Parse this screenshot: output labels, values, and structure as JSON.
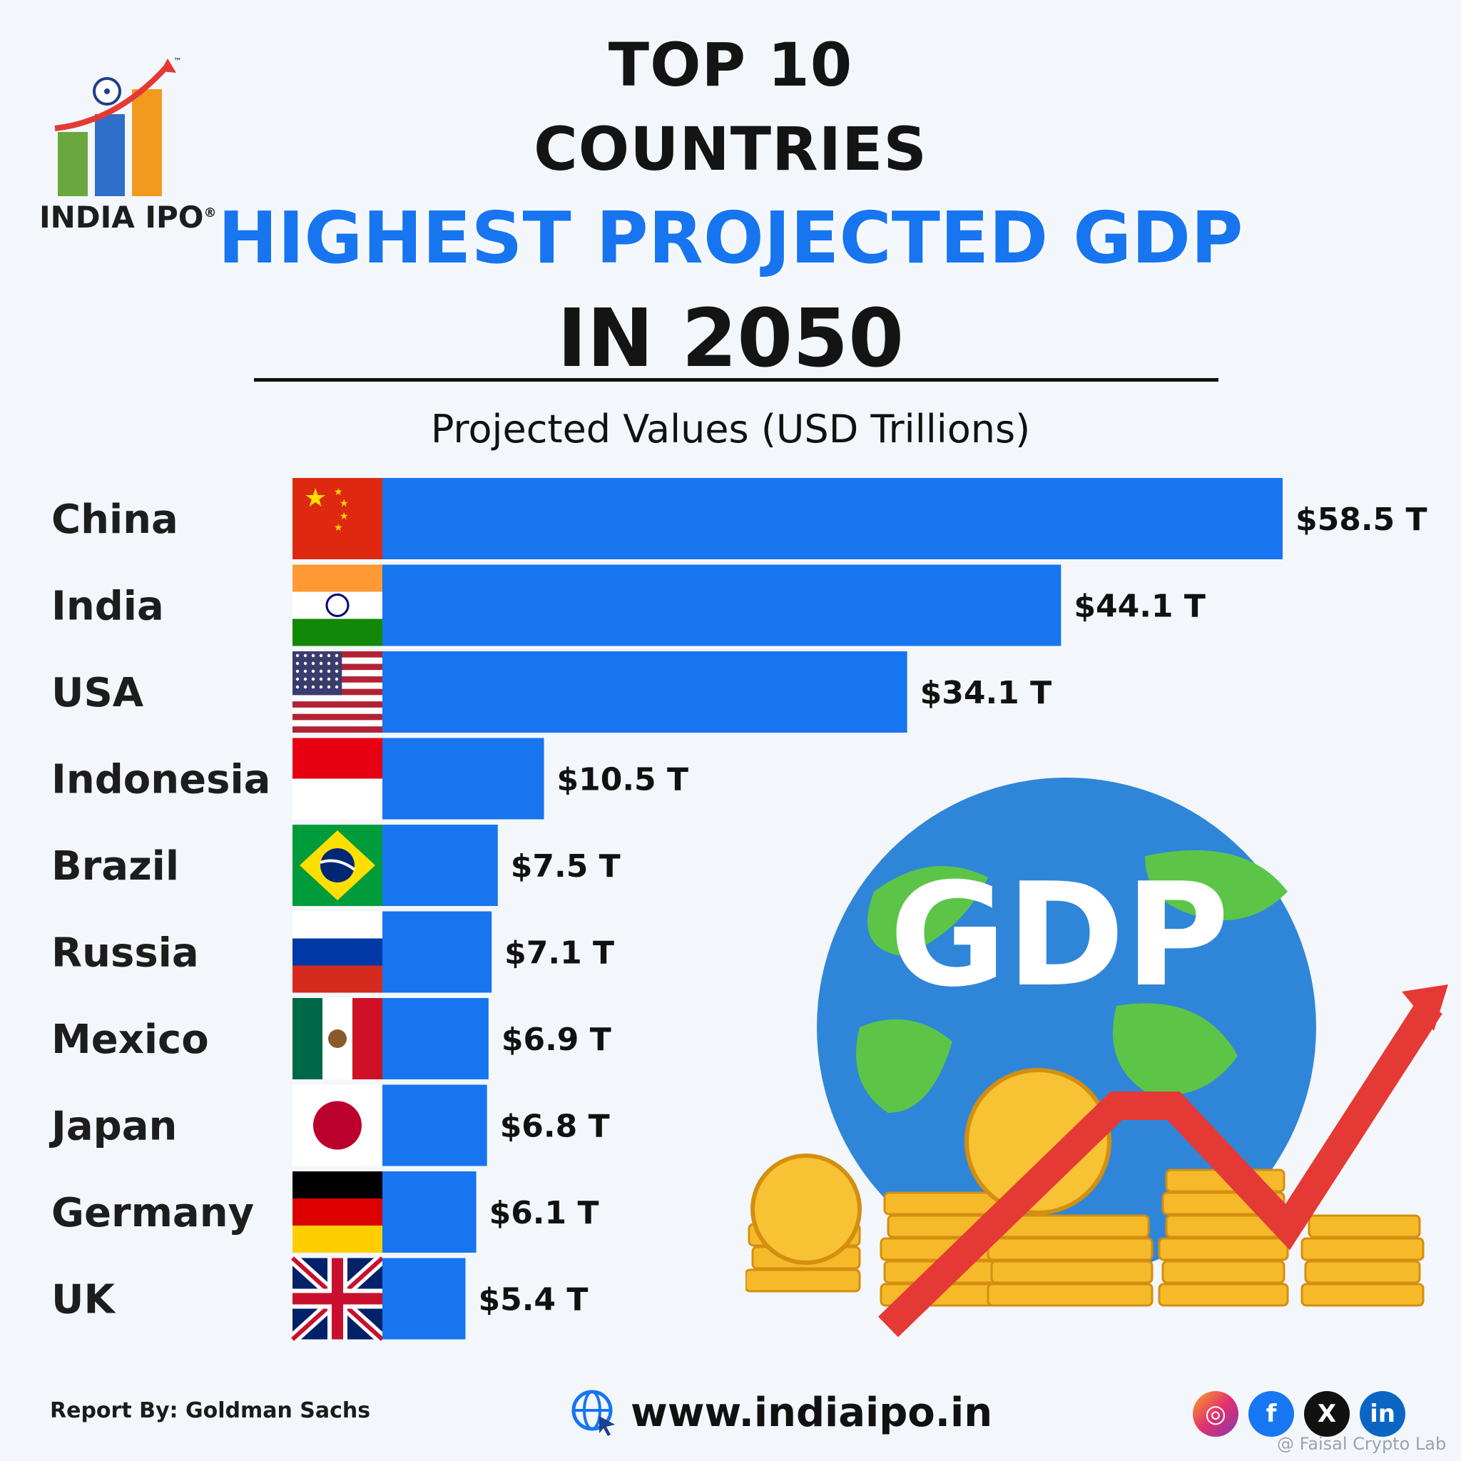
{
  "header": {
    "line1": "TOP 10",
    "line2": "COUNTRIES",
    "line3": "HIGHEST PROJECTED GDP",
    "line4": "IN 2050",
    "subtitle": "Projected Values (USD Trillions)"
  },
  "logo": {
    "text": "INDIA IPO",
    "registered": "®",
    "tm": "™"
  },
  "chart_data": {
    "type": "bar",
    "orientation": "horizontal",
    "title": "Projected Values (USD Trillions)",
    "categories": [
      "China",
      "India",
      "USA",
      "Indonesia",
      "Brazil",
      "Russia",
      "Mexico",
      "Japan",
      "Germany",
      "UK"
    ],
    "values": [
      58.5,
      44.1,
      34.1,
      10.5,
      7.5,
      7.1,
      6.9,
      6.8,
      6.1,
      5.4
    ],
    "value_labels": [
      "$58.5 T",
      "$44.1 T",
      "$34.1 T",
      "$10.5 T",
      "$7.5 T",
      "$7.1 T",
      "$6.9 T",
      "$6.8 T",
      "$6.1 T",
      "$5.4 T"
    ],
    "bar_color": "#1775f0",
    "grid": false,
    "legend": "none"
  },
  "illustration": {
    "globe_text": "GDP"
  },
  "footer": {
    "report_by": "Report By: Goldman Sachs",
    "website": "www.indiaipo.in",
    "social_icons": [
      "instagram-icon",
      "facebook-icon",
      "x-icon",
      "linkedin-icon"
    ],
    "credit": "@ Faisal Crypto Lab"
  },
  "colors": {
    "accent": "#1775f0",
    "orange": "#f29a1e",
    "green": "#5a9e3a",
    "red": "#e53935"
  }
}
